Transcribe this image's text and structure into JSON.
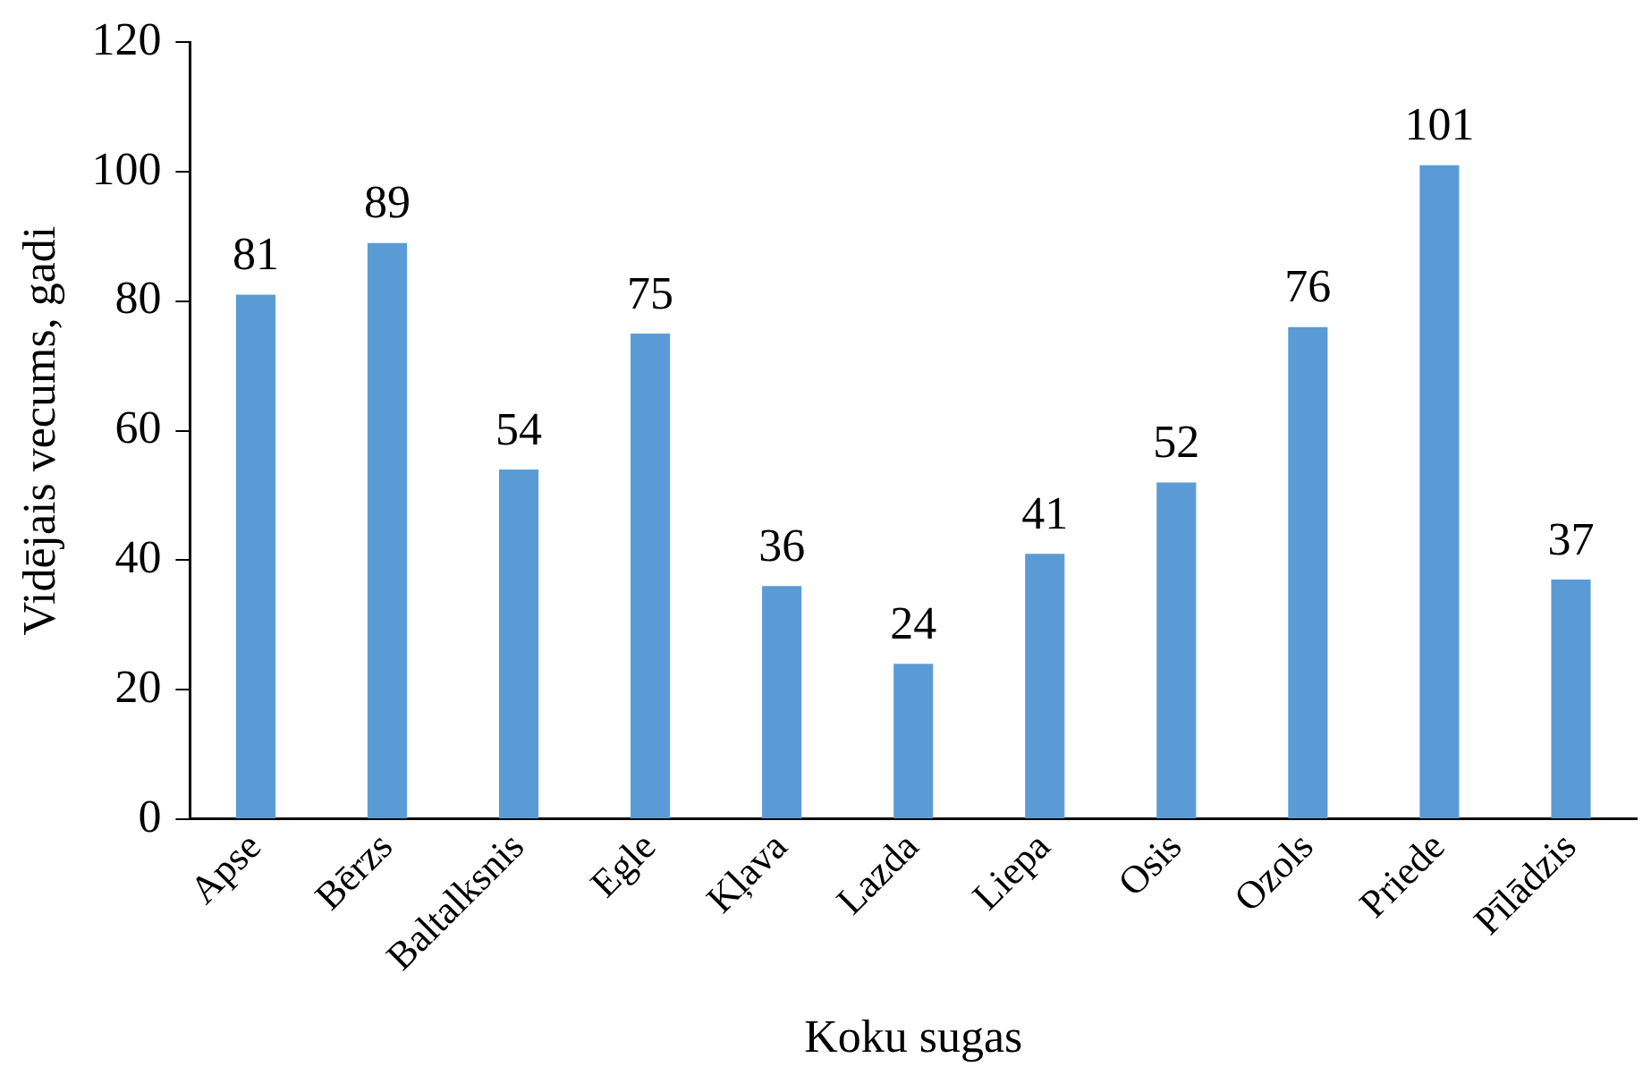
{
  "chart_data": {
    "type": "bar",
    "xlabel": "Koku sugas",
    "ylabel": "Vidējais vecums, gadi",
    "categories": [
      "Apse",
      "Bērzs",
      "Baltalksnis",
      "Egle",
      "Kļava",
      "Lazda",
      "Liepa",
      "Osis",
      "Ozols",
      "Priede",
      "Pīlādzis"
    ],
    "values": [
      81,
      89,
      54,
      75,
      36,
      24,
      41,
      52,
      76,
      101,
      37
    ],
    "color": "#5b9bd5",
    "ylim": [
      0,
      120
    ],
    "yticks": [
      0,
      20,
      40,
      60,
      80,
      100,
      120
    ],
    "grid": false,
    "legend": false,
    "data_labels": true
  }
}
